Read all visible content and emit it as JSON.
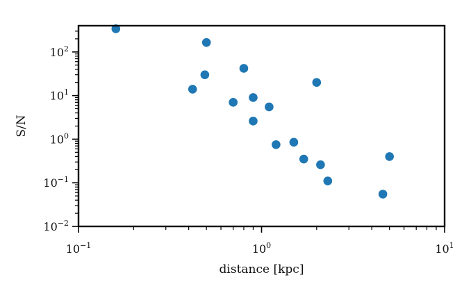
{
  "chart_data": {
    "type": "scatter",
    "xlabel": "distance [kpc]",
    "ylabel": "S/N",
    "xscale": "log",
    "yscale": "log",
    "xlim": [
      0.1,
      10
    ],
    "ylim": [
      0.01,
      400
    ],
    "xticks": [
      {
        "value": 0.1,
        "base": "10",
        "exp": "−1"
      },
      {
        "value": 1,
        "base": "10",
        "exp": "0"
      },
      {
        "value": 10,
        "base": "10",
        "exp": "1"
      }
    ],
    "yticks": [
      {
        "value": 0.01,
        "base": "10",
        "exp": "−2"
      },
      {
        "value": 0.1,
        "base": "10",
        "exp": "−1"
      },
      {
        "value": 1,
        "base": "10",
        "exp": "0"
      },
      {
        "value": 10,
        "base": "10",
        "exp": "1"
      },
      {
        "value": 100,
        "base": "10",
        "exp": "2"
      }
    ],
    "marker_color": "#1f77b4",
    "grid": false,
    "series": [
      {
        "points": [
          [
            0.16,
            340
          ],
          [
            0.42,
            14
          ],
          [
            0.49,
            30
          ],
          [
            0.5,
            165
          ],
          [
            0.7,
            7
          ],
          [
            0.8,
            42
          ],
          [
            0.9,
            9
          ],
          [
            0.9,
            2.6
          ],
          [
            1.1,
            5.5
          ],
          [
            1.2,
            0.75
          ],
          [
            1.5,
            0.85
          ],
          [
            1.7,
            0.35
          ],
          [
            2.0,
            20
          ],
          [
            2.1,
            0.26
          ],
          [
            2.3,
            0.11
          ],
          [
            4.6,
            0.055
          ],
          [
            5.0,
            0.4
          ]
        ]
      }
    ]
  }
}
